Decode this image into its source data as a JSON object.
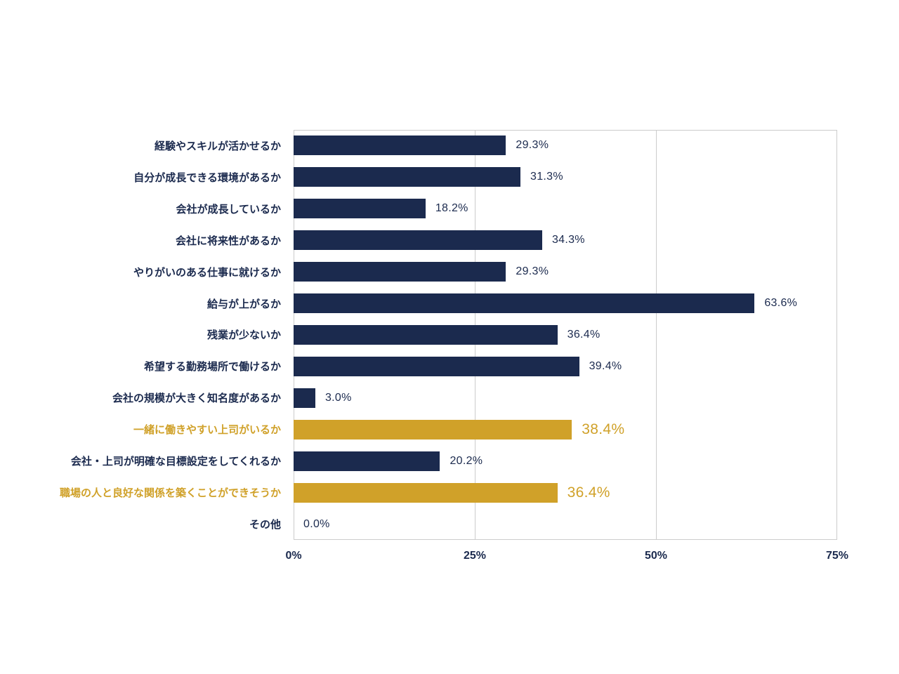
{
  "chart_data": {
    "type": "bar",
    "orientation": "horizontal",
    "title": "",
    "xlabel": "",
    "ylabel": "",
    "xlim": [
      0,
      75
    ],
    "grid": "vertical",
    "legend": "none",
    "x_ticks": [
      {
        "value": 0,
        "label": "0%"
      },
      {
        "value": 25,
        "label": "25%"
      },
      {
        "value": 50,
        "label": "50%"
      },
      {
        "value": 75,
        "label": "75%"
      }
    ],
    "rows": [
      {
        "category": "経験やスキルが活かせるか",
        "value": 29.3,
        "label": "29.3%",
        "highlight": false
      },
      {
        "category": "自分が成長できる環境があるか",
        "value": 31.3,
        "label": "31.3%",
        "highlight": false
      },
      {
        "category": "会社が成長しているか",
        "value": 18.2,
        "label": "18.2%",
        "highlight": false
      },
      {
        "category": "会社に将来性があるか",
        "value": 34.3,
        "label": "34.3%",
        "highlight": false
      },
      {
        "category": "やりがいのある仕事に就けるか",
        "value": 29.3,
        "label": "29.3%",
        "highlight": false
      },
      {
        "category": "給与が上がるか",
        "value": 63.6,
        "label": "63.6%",
        "highlight": false
      },
      {
        "category": "残業が少ないか",
        "value": 36.4,
        "label": "36.4%",
        "highlight": false
      },
      {
        "category": "希望する勤務場所で働けるか",
        "value": 39.4,
        "label": "39.4%",
        "highlight": false
      },
      {
        "category": "会社の規模が大きく知名度があるか",
        "value": 3.0,
        "label": "3.0%",
        "highlight": false
      },
      {
        "category": "一緒に働きやすい上司がいるか",
        "value": 38.4,
        "label": "38.4%",
        "highlight": true
      },
      {
        "category": "会社・上司が明確な目標設定をしてくれるか",
        "value": 20.2,
        "label": "20.2%",
        "highlight": false
      },
      {
        "category": "職場の人と良好な関係を築くことができそうか",
        "value": 36.4,
        "label": "36.4%",
        "highlight": true
      },
      {
        "category": "その他",
        "value": 0.0,
        "label": "0.0%",
        "highlight": false
      }
    ],
    "colors": {
      "bar": "#1b2a4e",
      "highlight_bar": "#d0a129",
      "label": "#1b2a4e",
      "highlight_label": "#d0a129",
      "grid": "#cccccc",
      "background": "#ffffff"
    }
  }
}
